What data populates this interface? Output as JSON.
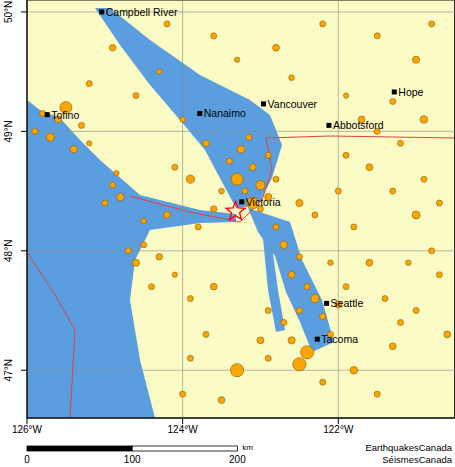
{
  "chart_data": {
    "type": "scatter",
    "xlim": [
      -126,
      -120.5
    ],
    "ylim": [
      46.6,
      50.1
    ],
    "xticks": [
      {
        "value": -126,
        "label": "126°W"
      },
      {
        "value": -124,
        "label": "124°W"
      },
      {
        "value": -122,
        "label": "122°W"
      }
    ],
    "yticks": [
      {
        "value": 47,
        "label": "47°N"
      },
      {
        "value": 48,
        "label": "48°N"
      },
      {
        "value": 49,
        "label": "49°N"
      },
      {
        "value": 50,
        "label": "50°N"
      }
    ],
    "grid": true,
    "color": "#ffa500",
    "marker": "circle",
    "x": [
      -125.8,
      -125.6,
      -125.5,
      -125.3,
      -125.7,
      -125.2,
      -125.9,
      -125.4,
      -124.9,
      -124.8,
      -124.85,
      -125.0,
      -124.6,
      -124.3,
      -124.9,
      -125.2,
      -124.0,
      -123.7,
      -124.1,
      -123.9,
      -124.2,
      -123.6,
      -123.3,
      -122.8,
      -122.2,
      -121.5,
      -121.0,
      -120.8,
      -122.6,
      -121.3,
      -121.7,
      -121.9,
      -121.2,
      -120.9,
      -123.3,
      -123.2,
      -123.1,
      -123.0,
      -123.4,
      -122.9,
      -123.25,
      -123.5,
      -123.1,
      -122.8,
      -122.9,
      -123.0,
      -123.6,
      -123.15,
      -123.8,
      -124.2,
      -124.5,
      -124.5,
      -124.3,
      -124.7,
      -124.6,
      -124.4,
      -124.1,
      -123.9,
      -123.6,
      -123.7,
      -122.8,
      -122.7,
      -122.5,
      -122.6,
      -122.4,
      -122.3,
      -122.5,
      -122.2,
      -122.7,
      -122.6,
      -122.4,
      -122.5,
      -122.9,
      -123.0,
      -122.9,
      -123.3,
      -122.1,
      -122.0,
      -121.9,
      -122.1,
      -122.3,
      -122.5,
      -122.0,
      -121.8,
      -121.6,
      -121.4,
      -121.2,
      -121.8,
      -121.5,
      -122.2,
      -121.3,
      -121.0,
      -121.9,
      -121.6,
      -121.3,
      -121.0,
      -120.8,
      -120.7,
      -121.1,
      -120.9,
      -121.5,
      -120.6,
      -120.7,
      -123.9,
      -124.0,
      -123.5
    ],
    "values": [
      49.15,
      49.1,
      49.2,
      49.05,
      48.95,
      48.9,
      49.0,
      48.85,
      48.55,
      48.45,
      48.65,
      48.4,
      49.3,
      49.5,
      49.7,
      49.4,
      49.1,
      48.9,
      48.7,
      48.6,
      49.9,
      49.8,
      49.6,
      49.7,
      49.9,
      49.8,
      49.6,
      49.9,
      49.45,
      49.25,
      49.1,
      49.3,
      48.9,
      49.1,
      48.6,
      48.5,
      48.7,
      48.55,
      48.75,
      48.8,
      48.85,
      48.5,
      48.4,
      48.6,
      48.45,
      48.35,
      48.35,
      48.95,
      48.2,
      48.3,
      48.25,
      48.05,
      47.95,
      48.0,
      47.9,
      47.7,
      47.8,
      47.6,
      47.7,
      47.3,
      48.2,
      48.05,
      47.95,
      47.8,
      47.7,
      47.6,
      47.5,
      47.45,
      47.4,
      47.25,
      47.15,
      47.05,
      47.1,
      47.25,
      47.5,
      47.0,
      47.3,
      47.55,
      47.7,
      47.9,
      48.3,
      48.4,
      48.5,
      48.2,
      47.9,
      47.6,
      47.4,
      47.0,
      46.8,
      46.9,
      47.2,
      47.5,
      48.8,
      48.7,
      48.5,
      48.3,
      48.0,
      47.8,
      47.9,
      48.6,
      49.0,
      47.3,
      48.4,
      47.1,
      46.8,
      46.75
    ],
    "magnitudes": [
      2.0,
      2.2,
      3.5,
      2.0,
      2.5,
      1.8,
      2.0,
      2.3,
      2.0,
      2.4,
      1.8,
      2.0,
      2.0,
      1.8,
      2.1,
      2.0,
      1.9,
      2.2,
      2.0,
      2.6,
      2.0,
      2.0,
      1.8,
      2.2,
      2.0,
      2.0,
      2.3,
      2.0,
      1.9,
      2.0,
      2.2,
      1.8,
      2.0,
      2.4,
      3.5,
      2.0,
      2.2,
      2.8,
      2.0,
      2.0,
      2.4,
      1.9,
      3.5,
      2.0,
      2.3,
      2.0,
      2.1,
      2.0,
      2.0,
      2.2,
      1.9,
      2.0,
      2.1,
      2.0,
      2.3,
      2.0,
      1.8,
      2.0,
      2.2,
      2.0,
      2.0,
      2.4,
      2.0,
      2.2,
      2.0,
      2.6,
      2.0,
      2.1,
      2.0,
      2.3,
      3.8,
      3.8,
      2.0,
      2.2,
      2.0,
      3.8,
      2.0,
      2.2,
      2.0,
      1.9,
      2.0,
      2.3,
      2.0,
      2.0,
      2.2,
      2.0,
      2.0,
      2.4,
      2.0,
      2.0,
      2.2,
      2.0,
      2.0,
      2.2,
      2.0,
      2.5,
      2.0,
      2.0,
      1.9,
      2.0,
      2.0,
      2.2,
      2.0,
      2.0,
      2.0,
      2.2
    ],
    "epicenter": {
      "x": -123.32,
      "y": 48.33,
      "color": "#ff0000",
      "marker": "star"
    },
    "cities": [
      {
        "name": "Campbell River",
        "x": -125.04,
        "y": 50.0
      },
      {
        "name": "Tofino",
        "x": -125.74,
        "y": 49.14
      },
      {
        "name": "Nanaimo",
        "x": -123.78,
        "y": 49.15
      },
      {
        "name": "Vancouver",
        "x": -122.96,
        "y": 49.23
      },
      {
        "name": "Abbotsford",
        "x": -122.12,
        "y": 49.05
      },
      {
        "name": "Hope",
        "x": -121.28,
        "y": 49.33
      },
      {
        "name": "Victoria",
        "x": -123.24,
        "y": 48.41
      },
      {
        "name": "Seattle",
        "x": -122.15,
        "y": 47.56
      },
      {
        "name": "Tacoma",
        "x": -122.27,
        "y": 47.26
      }
    ],
    "city_marker": "square",
    "scale_bar": {
      "ticks": [
        0,
        100,
        200
      ],
      "unit": "km"
    },
    "credits": [
      "EarthquakesCanada",
      "SéismesCanada"
    ]
  }
}
